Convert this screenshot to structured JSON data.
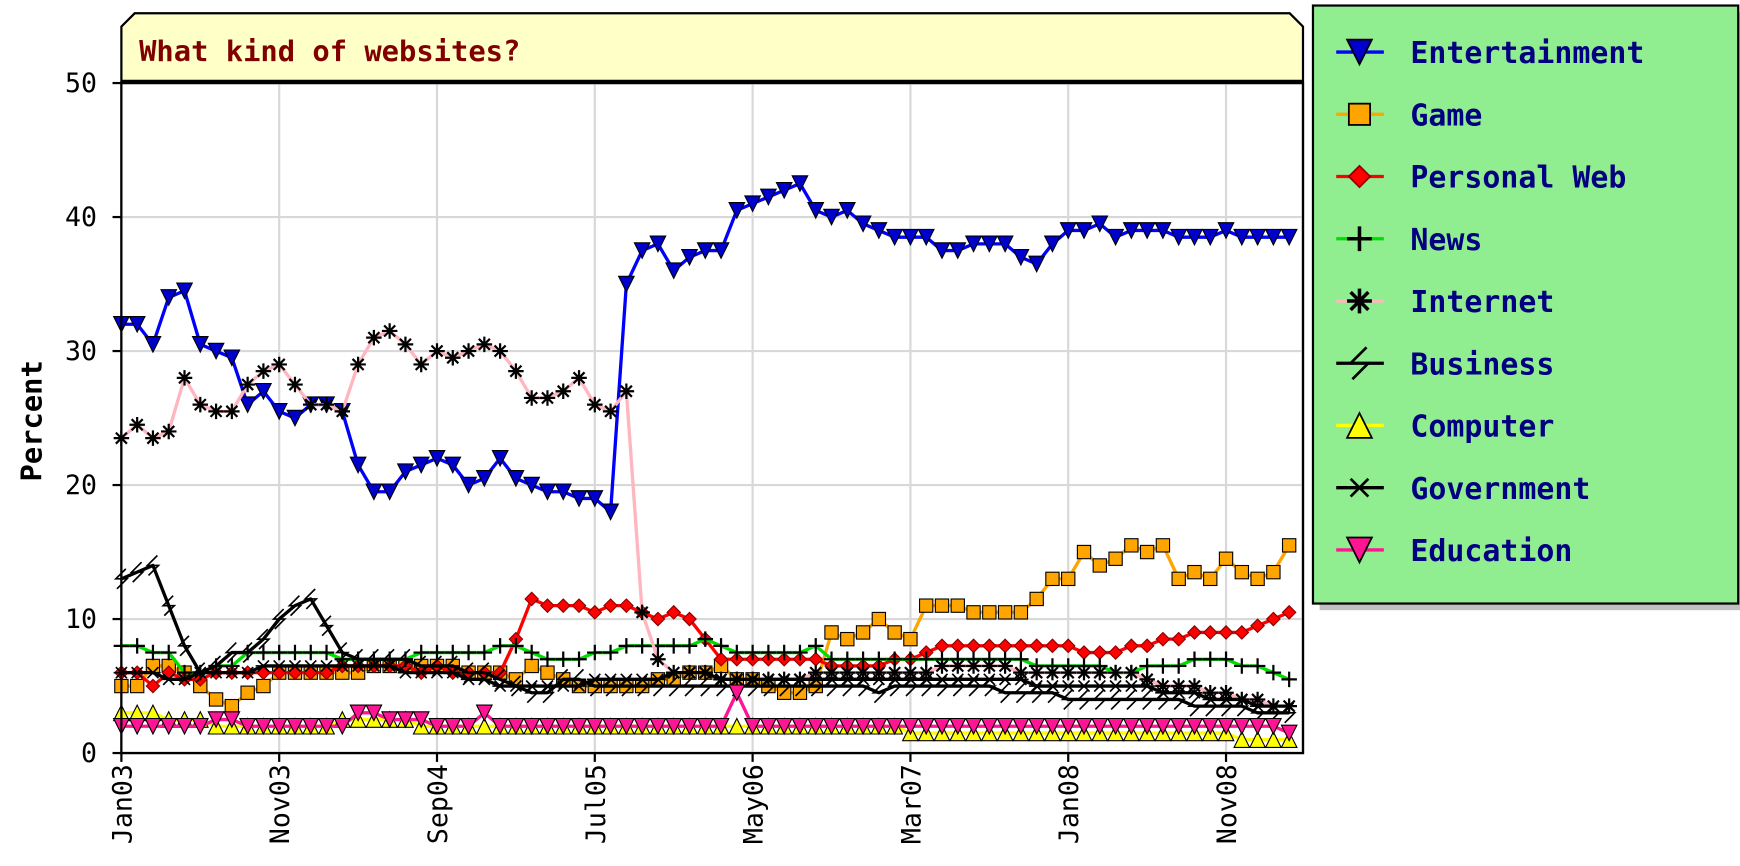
{
  "chart_data": {
    "type": "line",
    "title": "What kind of websites?",
    "y_label": "Percent",
    "categories": [
      "Jan03",
      null,
      null,
      null,
      null,
      null,
      null,
      null,
      null,
      null,
      "Nov03",
      null,
      null,
      null,
      null,
      null,
      null,
      null,
      null,
      null,
      "Sep04",
      null,
      null,
      null,
      null,
      null,
      null,
      null,
      null,
      null,
      "Jul05",
      null,
      null,
      null,
      null,
      null,
      null,
      null,
      null,
      null,
      "May06",
      null,
      null,
      null,
      null,
      null,
      null,
      null,
      null,
      null,
      "Mar07",
      null,
      null,
      null,
      null,
      null,
      null,
      null,
      null,
      null,
      "Jan08",
      null,
      null,
      null,
      null,
      null,
      null,
      null,
      null,
      null,
      "Nov08",
      null,
      null,
      null,
      null
    ],
    "ylim": [
      0,
      50
    ],
    "yticks": [
      0,
      10,
      20,
      30,
      40,
      50
    ],
    "grid": true,
    "legend": "right",
    "series": [
      {
        "name": "Entertainment",
        "color": "#0000ff",
        "marker": "triangle-down",
        "marker_color": "#0000cc",
        "values": [
          32,
          32,
          30.5,
          34,
          34.5,
          30.5,
          30,
          29.5,
          26,
          27,
          25.5,
          25,
          26,
          26,
          25.5,
          21.5,
          19.5,
          19.5,
          21,
          21.5,
          22,
          21.5,
          20,
          20.5,
          22,
          20.5,
          20,
          19.5,
          19.5,
          19,
          19,
          18,
          35,
          37.5,
          38,
          36,
          37,
          37.5,
          37.5,
          40.5,
          41,
          41.5,
          42,
          42.5,
          40.5,
          40,
          40.5,
          39.5,
          39,
          38.5,
          38.5,
          38.5,
          37.5,
          37.5,
          38,
          38,
          38,
          37,
          36.5,
          38,
          39,
          39,
          39.5,
          38.5,
          39,
          39,
          39,
          38.5,
          38.5,
          38.5,
          39,
          38.5,
          38.5,
          38.5,
          38.5
        ]
      },
      {
        "name": "Game",
        "color": "#ffa500",
        "marker": "square",
        "marker_color": "#ffa500",
        "values": [
          5,
          5,
          6.5,
          6.5,
          6,
          5,
          4,
          3.5,
          4.5,
          5,
          6,
          6,
          6,
          6,
          6,
          6,
          6.5,
          6.5,
          6.5,
          6.5,
          6.5,
          6.5,
          6,
          6,
          6,
          5.5,
          6.5,
          6,
          5.5,
          5,
          5,
          5,
          5,
          5,
          5.5,
          5.5,
          6,
          6,
          6.5,
          5.5,
          5.5,
          5,
          4.5,
          4.5,
          5,
          9,
          8.5,
          9,
          10,
          9,
          8.5,
          11,
          11,
          11,
          10.5,
          10.5,
          10.5,
          10.5,
          11.5,
          13,
          13,
          15,
          14,
          14.5,
          15.5,
          15,
          15.5,
          13,
          13.5,
          13,
          14.5,
          13.5,
          13,
          13.5,
          15.5
        ]
      },
      {
        "name": "Personal Web",
        "color": "#ff0000",
        "marker": "diamond",
        "marker_color": "#ff0000",
        "values": [
          6,
          6,
          5,
          6,
          5.5,
          5.5,
          6,
          6,
          6,
          6,
          6,
          6,
          6,
          6,
          6.5,
          6.5,
          6.5,
          6.5,
          6.5,
          6,
          6.5,
          6,
          6,
          6,
          6,
          8.5,
          11.5,
          11,
          11,
          11,
          10.5,
          11,
          11,
          10.5,
          10,
          10.5,
          10,
          8.5,
          7,
          7,
          7,
          7,
          7,
          7,
          7,
          6.5,
          6.5,
          6.5,
          6.5,
          7,
          7,
          7.5,
          8,
          8,
          8,
          8,
          8,
          8,
          8,
          8,
          8,
          7.5,
          7.5,
          7.5,
          8,
          8,
          8.5,
          8.5,
          9,
          9,
          9,
          9,
          9.5,
          10,
          10.5
        ]
      },
      {
        "name": "News",
        "color": "#00dd00",
        "marker": "plus",
        "marker_color": "#000000",
        "values": [
          8,
          8,
          7.5,
          7.5,
          6,
          6,
          6.5,
          6.5,
          7.5,
          7.5,
          7.5,
          7.5,
          7.5,
          7.5,
          7,
          7,
          7,
          7,
          7,
          7.5,
          7.5,
          7.5,
          7.5,
          7.5,
          8,
          8,
          7.5,
          7,
          7,
          7,
          7.5,
          7.5,
          8,
          8,
          8,
          8,
          8,
          8.5,
          8,
          7.5,
          7.5,
          7.5,
          7.5,
          7.5,
          8,
          7,
          7,
          7,
          7,
          7,
          7,
          7,
          7,
          7,
          7,
          7,
          7,
          7,
          6.5,
          6.5,
          6.5,
          6.5,
          6.5,
          6,
          6,
          6.5,
          6.5,
          6.5,
          7,
          7,
          7,
          6.5,
          6.5,
          6,
          5.5
        ]
      },
      {
        "name": "Internet",
        "color": "#ffb6c1",
        "marker": "asterisk",
        "marker_color": "#000000",
        "values": [
          23.5,
          24.5,
          23.5,
          24,
          28,
          26,
          25.5,
          25.5,
          27.5,
          28.5,
          29,
          27.5,
          26,
          26,
          25.5,
          29,
          31,
          31.5,
          30.5,
          29,
          30,
          29.5,
          30,
          30.5,
          30,
          28.5,
          26.5,
          26.5,
          27,
          28,
          26,
          25.5,
          27,
          10.5,
          7,
          6,
          6,
          6,
          5.5,
          5.5,
          5.5,
          5.5,
          5.5,
          5.5,
          6,
          6,
          6,
          6,
          6,
          6,
          6,
          6,
          6.5,
          6.5,
          6.5,
          6.5,
          6.5,
          6,
          6,
          6,
          6,
          6,
          6,
          6,
          6,
          5.5,
          5,
          5,
          5,
          4.5,
          4.5,
          4,
          4,
          3.5,
          3.5
        ]
      },
      {
        "name": "Business",
        "color": "#000000",
        "marker": "bolt",
        "marker_color": "#000000",
        "values": [
          13,
          13.5,
          14,
          11,
          8,
          6,
          6.5,
          7.5,
          7.5,
          8.5,
          10,
          11,
          11.5,
          9.5,
          7.5,
          7,
          7,
          7,
          7,
          6.5,
          6.5,
          6.5,
          6,
          6,
          5.5,
          5,
          4.5,
          4.5,
          5.5,
          5.5,
          5,
          5,
          5,
          5,
          5,
          5,
          5,
          5,
          5,
          5,
          5,
          5,
          5,
          5,
          5,
          5,
          5,
          5,
          4.5,
          5,
          5,
          5,
          5,
          5,
          5,
          5,
          4.5,
          4.5,
          4.5,
          4.5,
          4,
          4,
          4,
          4,
          4,
          4,
          4,
          4,
          3.5,
          3.5,
          3.5,
          3.5,
          3,
          3,
          3
        ]
      },
      {
        "name": "Computer",
        "color": "#ffff00",
        "marker": "triangle",
        "marker_color": "#ffff00",
        "values": [
          3,
          3,
          3,
          2.5,
          2.5,
          2.5,
          2,
          2,
          2,
          2,
          2,
          2,
          2,
          2,
          2.5,
          2.5,
          2.5,
          2.5,
          2.5,
          2,
          2,
          2,
          2,
          2,
          2,
          2,
          2,
          2,
          2,
          2,
          2,
          2,
          2,
          2,
          2,
          2,
          2,
          2,
          2,
          2,
          2,
          2,
          2,
          2,
          2,
          2,
          2,
          2,
          2,
          2,
          1.5,
          1.5,
          1.5,
          1.5,
          1.5,
          1.5,
          1.5,
          1.5,
          1.5,
          1.5,
          1.5,
          1.5,
          1.5,
          1.5,
          1.5,
          1.5,
          1.5,
          1.5,
          1.5,
          1.5,
          1.5,
          1,
          1,
          1,
          1
        ]
      },
      {
        "name": "Government",
        "color": "#000000",
        "marker": "star",
        "marker_color": "#000000",
        "values": [
          6,
          6,
          6,
          5.5,
          5.5,
          6,
          6,
          6,
          6,
          6.5,
          6.5,
          6.5,
          6.5,
          6.5,
          6.5,
          6.5,
          6.5,
          6.5,
          6,
          6,
          6,
          6,
          5.5,
          5.5,
          5,
          5,
          5,
          5,
          5,
          5,
          5.5,
          5.5,
          5.5,
          5.5,
          5.5,
          6,
          6,
          6,
          5.5,
          5.5,
          5.5,
          5.5,
          5.5,
          5.5,
          5.5,
          5.5,
          5.5,
          5.5,
          5.5,
          5.5,
          5.5,
          5.5,
          5.5,
          5.5,
          5.5,
          5.5,
          5.5,
          5.5,
          5,
          5,
          5,
          5,
          5,
          5,
          5,
          5,
          4.5,
          4.5,
          4.5,
          4,
          4,
          4,
          3.5,
          3.5,
          3.5
        ]
      },
      {
        "name": "Education",
        "color": "#ff1493",
        "marker": "triangle-down",
        "marker_color": "#ff1493",
        "values": [
          2,
          2,
          2,
          2,
          2,
          2,
          2.5,
          2.5,
          2,
          2,
          2,
          2,
          2,
          2,
          2,
          3,
          3,
          2.5,
          2.5,
          2.5,
          2,
          2,
          2,
          3,
          2,
          2,
          2,
          2,
          2,
          2,
          2,
          2,
          2,
          2,
          2,
          2,
          2,
          2,
          2,
          4.5,
          2,
          2,
          2,
          2,
          2,
          2,
          2,
          2,
          2,
          2,
          2,
          2,
          2,
          2,
          2,
          2,
          2,
          2,
          2,
          2,
          2,
          2,
          2,
          2,
          2,
          2,
          2,
          2,
          2,
          2,
          2,
          2,
          2,
          2,
          1.5
        ]
      }
    ]
  }
}
